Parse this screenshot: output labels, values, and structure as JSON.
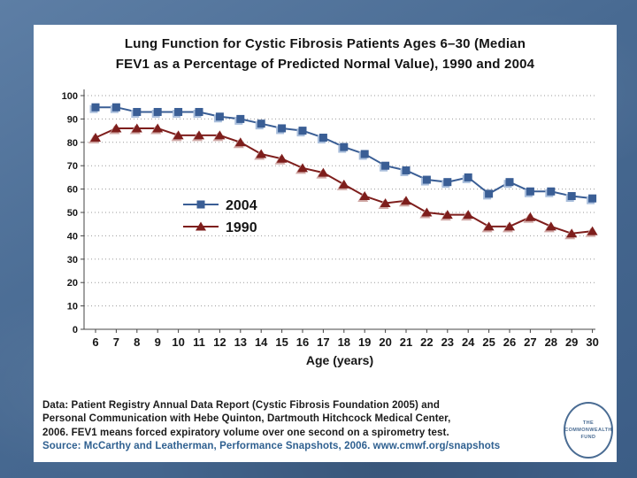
{
  "slide": {
    "title_line1": "Lung Function for Cystic Fibrosis Patients Ages 6–30 (Median",
    "title_line2": "FEV1 as a Percentage of Predicted Normal Value), 1990 and 2004"
  },
  "chart_data": {
    "type": "line",
    "title": "Lung Function for Cystic Fibrosis Patients Ages 6–30 (Median FEV1 as a Percentage of Predicted Normal Value), 1990 and 2004",
    "xlabel": "Age (years)",
    "ylabel": "",
    "x": [
      6,
      7,
      8,
      9,
      10,
      11,
      12,
      13,
      14,
      15,
      16,
      17,
      18,
      19,
      20,
      21,
      22,
      23,
      24,
      25,
      26,
      27,
      28,
      29,
      30
    ],
    "series": [
      {
        "name": "2004",
        "marker": "square",
        "color": "#3a5e95",
        "shadow": "#aabfdc",
        "values": [
          95,
          95,
          93,
          93,
          93,
          93,
          91,
          90,
          88,
          86,
          85,
          82,
          78,
          75,
          70,
          68,
          64,
          63,
          65,
          58,
          63,
          59,
          59,
          57,
          56
        ]
      },
      {
        "name": "1990",
        "marker": "triangle",
        "color": "#7e1e1c",
        "shadow": "#d0a8a5",
        "values": [
          82,
          86,
          86,
          86,
          83,
          83,
          83,
          80,
          75,
          73,
          69,
          67,
          62,
          57,
          54,
          55,
          50,
          49,
          49,
          44,
          44,
          48,
          44,
          41,
          42
        ]
      }
    ],
    "ylim": [
      0,
      100
    ],
    "yticks": [
      0,
      10,
      20,
      30,
      40,
      50,
      60,
      70,
      80,
      90,
      100
    ],
    "grid": "dotted-horizontal",
    "legend_position": "inside-left-middle"
  },
  "footer": {
    "data_lines": [
      "Data: Patient Registry Annual Data Report (Cystic Fibrosis Foundation 2005) and",
      "Personal Communication with Hebe Quinton, Dartmouth Hitchcock Medical Center,",
      "2006. FEV1 means forced expiratory volume over one second on a spirometry test."
    ],
    "source_line": "Source: McCarthy and Leatherman, Performance Snapshots, 2006. www.cmwf.org/snapshots"
  },
  "logo": {
    "line1": "THE",
    "line2": "COMMONWEALTH",
    "line3": "FUND"
  },
  "colors": {
    "series_2004": "#3a5e95",
    "series_1990": "#7e1e1c",
    "source_text": "#2f6090",
    "background": "#486a92"
  }
}
